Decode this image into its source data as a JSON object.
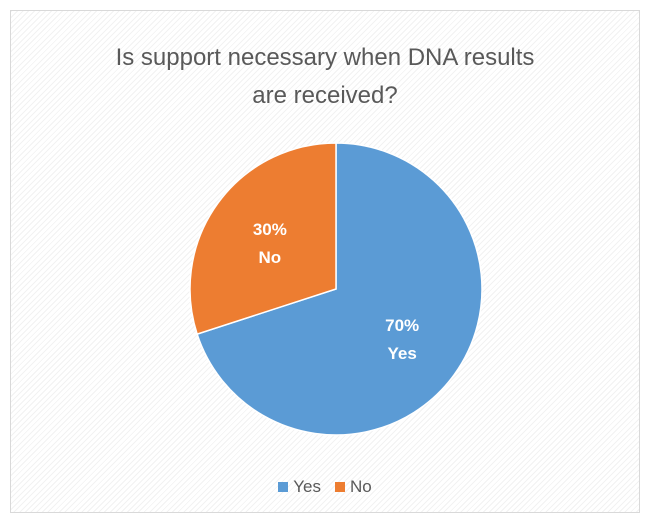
{
  "chart_data": {
    "type": "pie",
    "title": "Is support necessary when DNA results are received?",
    "categories": [
      "Yes",
      "No"
    ],
    "values": [
      70,
      30
    ],
    "data_labels": [
      {
        "percent": "70%",
        "category": "Yes"
      },
      {
        "percent": "30%",
        "category": "No"
      }
    ],
    "colors": {
      "Yes": "#5B9BD5",
      "No": "#ED7D31"
    },
    "legend_position": "bottom",
    "legend": [
      {
        "label": "Yes",
        "color": "#5B9BD5"
      },
      {
        "label": "No",
        "color": "#ED7D31"
      }
    ]
  }
}
